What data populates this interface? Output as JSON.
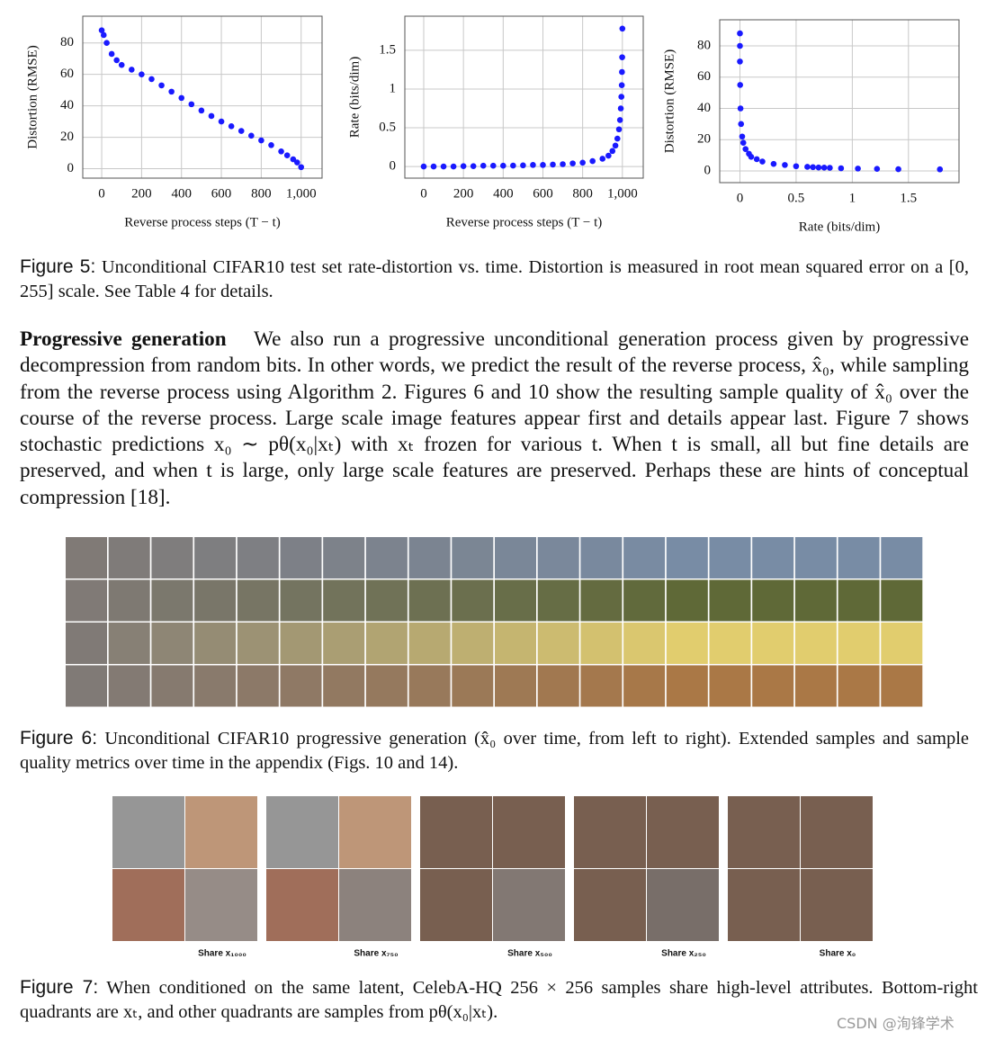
{
  "chart_data": [
    {
      "type": "scatter",
      "xlabel": "Reverse process steps (T − t)",
      "ylabel": "Distortion (RMSE)",
      "x": [
        0,
        10,
        25,
        50,
        75,
        100,
        150,
        200,
        250,
        300,
        350,
        400,
        450,
        500,
        550,
        600,
        650,
        700,
        750,
        800,
        850,
        900,
        930,
        960,
        980,
        1000
      ],
      "values": [
        88,
        85,
        80,
        73,
        69,
        66,
        63,
        60,
        57,
        53,
        49,
        45,
        41,
        37,
        33.5,
        30,
        27,
        24,
        21,
        18,
        15,
        11,
        8.5,
        6,
        4,
        1
      ],
      "color": "#1a1aff",
      "xlim": [
        -95,
        1105
      ],
      "ylim": [
        -6,
        97
      ],
      "xticks": [
        0,
        200,
        400,
        600,
        800,
        {
          "value": 1000,
          "label": "1,000"
        }
      ],
      "yticks": [
        0,
        20,
        40,
        60,
        80
      ],
      "grid": true
    },
    {
      "type": "scatter",
      "xlabel": "Reverse process steps (T − t)",
      "ylabel": "Rate (bits/dim)",
      "x": [
        0,
        50,
        100,
        150,
        200,
        250,
        300,
        350,
        400,
        450,
        500,
        550,
        600,
        650,
        700,
        750,
        800,
        850,
        900,
        930,
        950,
        965,
        975,
        983,
        988,
        992,
        995,
        997,
        998,
        999,
        1000
      ],
      "values": [
        0,
        0,
        0,
        0,
        0.005,
        0.005,
        0.01,
        0.01,
        0.01,
        0.012,
        0.015,
        0.02,
        0.02,
        0.025,
        0.03,
        0.04,
        0.05,
        0.07,
        0.1,
        0.14,
        0.2,
        0.27,
        0.36,
        0.48,
        0.6,
        0.75,
        0.9,
        1.05,
        1.22,
        1.41,
        1.78
      ],
      "color": "#1a1aff",
      "xlim": [
        -95,
        1105
      ],
      "ylim": [
        -0.15,
        1.94
      ],
      "xticks": [
        0,
        200,
        400,
        600,
        800,
        {
          "value": 1000,
          "label": "1,000"
        }
      ],
      "yticks": [
        0,
        0.5,
        1,
        1.5
      ],
      "grid": true
    },
    {
      "type": "scatter",
      "xlabel": "Rate (bits/dim)",
      "ylabel": "Distortion (RMSE)",
      "x": [
        0,
        0,
        0,
        0.002,
        0.005,
        0.01,
        0.02,
        0.03,
        0.05,
        0.08,
        0.1,
        0.15,
        0.2,
        0.3,
        0.4,
        0.5,
        0.6,
        0.65,
        0.7,
        0.75,
        0.8,
        0.9,
        1.05,
        1.22,
        1.41,
        1.78
      ],
      "values": [
        88,
        80,
        70,
        55,
        40,
        30,
        22,
        18,
        14,
        11,
        9,
        7.5,
        6,
        4.5,
        3.8,
        3,
        2.6,
        2.4,
        2.2,
        2.1,
        2,
        1.7,
        1.5,
        1.3,
        1.1,
        1
      ],
      "color": "#1a1aff",
      "xlim": [
        -0.18,
        1.95
      ],
      "ylim": [
        -7.5,
        96.7
      ],
      "xticks": [
        0,
        0.5,
        1,
        1.5
      ],
      "yticks": [
        0,
        20,
        40,
        60,
        80
      ],
      "grid": true
    }
  ],
  "figure5": {
    "label": "Figure 5:",
    "caption": "Unconditional CIFAR10 test set rate-distortion vs. time. Distortion is measured in root mean squared error on a [0, 255] scale. See Table 4 for details."
  },
  "paragraph": {
    "heading": "Progressive generation",
    "text": "We also run a progressive unconditional generation process given by progressive decompression from random bits. In other words, we predict the result of the reverse process, x̂₀, while sampling from the reverse process using Algorithm 2. Figures 6 and 10 show the resulting sample quality of x̂₀ over the course of the reverse process. Large scale image features appear first and details appear last. Figure 7 shows stochastic predictions x₀ ∼ pθ(x₀|xₜ) with xₜ frozen for various t. When t is small, all but fine details are preserved, and when t is large, only large scale features are preserved. Perhaps these are hints of conceptual compression [18]."
  },
  "figure6": {
    "label": "Figure 6:",
    "caption": "Unconditional CIFAR10 progressive generation (x̂₀ over time, from left to right). Extended samples and sample quality metrics over time in the appendix (Figs. 10 and 14)."
  },
  "figure7": {
    "labels": [
      "Share x₁₀₀₀",
      "Share x₇₅₀",
      "Share x₅₀₀",
      "Share x₂₅₀",
      "Share x₀"
    ],
    "label": "Figure 7:",
    "caption": "When conditioned on the same latent, CelebA-HQ 256 × 256 samples share high-level attributes. Bottom-right quadrants are xₜ, and other quadrants are samples from pθ(x₀|xₜ)."
  },
  "watermark": "CSDN @洵锋学术"
}
